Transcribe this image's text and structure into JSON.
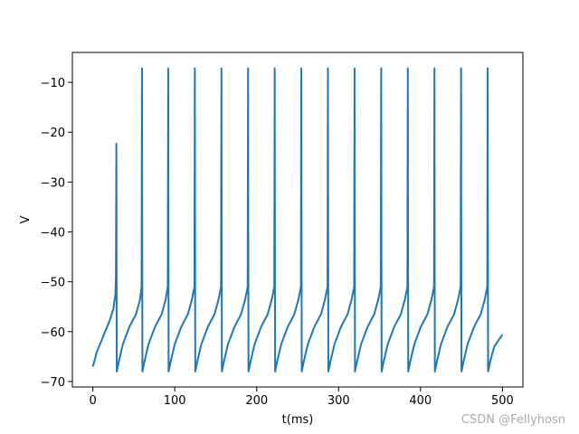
{
  "chart_data": {
    "type": "line",
    "xlabel": "t(ms)",
    "ylabel": "V",
    "watermark": "CSDN @Fellyhosn",
    "color": "#1f77b4",
    "x": [
      0,
      5,
      10,
      15,
      20,
      25,
      27.5,
      28.2,
      28.7,
      29.2,
      31.7,
      36.7,
      44.7,
      52.7,
      57.7,
      59.5,
      60,
      60.5,
      63,
      68,
      76,
      84,
      89,
      91.5,
      92,
      92.5,
      95,
      100,
      108,
      116,
      121,
      124,
      124.5,
      125,
      127.5,
      132.5,
      140.5,
      148.5,
      153.5,
      156.5,
      157,
      157.5,
      160,
      165,
      173,
      181,
      186,
      189,
      189.5,
      190,
      192.5,
      197.5,
      205.5,
      213.5,
      218.5,
      221.5,
      222,
      222.5,
      225,
      230,
      238,
      246,
      251,
      254,
      254.5,
      255,
      257.5,
      262.5,
      270.5,
      278.5,
      283.5,
      286.5,
      287,
      287.5,
      290,
      295,
      303,
      311,
      316,
      319,
      319.5,
      320,
      322.5,
      327.5,
      335.5,
      343.5,
      348.5,
      351.5,
      352,
      352.5,
      355,
      360,
      368,
      376,
      381,
      384,
      384.5,
      385,
      387.5,
      392.5,
      400.5,
      408.5,
      413.5,
      416.5,
      417,
      417.5,
      420,
      425,
      433,
      441,
      446,
      449,
      449.5,
      450,
      452.5,
      457.5,
      465.5,
      473.5,
      478.5,
      481.5,
      482,
      482.5,
      485,
      490,
      495,
      500
    ],
    "values": [
      -67,
      -64,
      -62,
      -60,
      -58,
      -55.5,
      -52.5,
      -49,
      -22.3,
      -68,
      -66,
      -62.5,
      -59,
      -56.5,
      -53.5,
      -51,
      -7.2,
      -68,
      -66,
      -62.5,
      -59,
      -56.5,
      -53.5,
      -51,
      -7.2,
      -68,
      -66,
      -62.5,
      -59,
      -56.5,
      -53.5,
      -51,
      -7.2,
      -68,
      -66,
      -62.5,
      -59,
      -56.5,
      -53.5,
      -51,
      -7.2,
      -68,
      -66,
      -62.5,
      -59,
      -56.5,
      -53.5,
      -51,
      -7.2,
      -68,
      -66,
      -62.5,
      -59,
      -56.5,
      -53.5,
      -51,
      -7.2,
      -68,
      -66,
      -62.5,
      -59,
      -56.5,
      -53.5,
      -51,
      -7.2,
      -68,
      -66,
      -62.5,
      -59,
      -56.5,
      -53.5,
      -51,
      -7.2,
      -68,
      -66,
      -62.5,
      -59,
      -56.5,
      -53.5,
      -51,
      -7.2,
      -68,
      -66,
      -62.5,
      -59,
      -56.5,
      -53.5,
      -51,
      -7.2,
      -68,
      -66,
      -62.5,
      -59,
      -56.5,
      -53.5,
      -51,
      -7.2,
      -68,
      -66,
      -62.5,
      -59,
      -56.5,
      -53.5,
      -51,
      -7.2,
      -68,
      -66,
      -62.5,
      -59,
      -56.5,
      -53.5,
      -51,
      -7.2,
      -68,
      -66,
      -62.5,
      -59,
      -56.5,
      -53.5,
      -51,
      -7.2,
      -68,
      -66,
      -63,
      -61.8,
      -60.6
    ],
    "xlim": [
      -25,
      525
    ],
    "ylim": [
      -71.1,
      -4.0
    ],
    "xticks": [
      0,
      100,
      200,
      300,
      400,
      500
    ],
    "yticks": [
      {
        "value": -70,
        "label": "−70"
      },
      {
        "value": -60,
        "label": "−60"
      },
      {
        "value": -50,
        "label": "−50"
      },
      {
        "value": -40,
        "label": "−40"
      },
      {
        "value": -30,
        "label": "−30"
      },
      {
        "value": -20,
        "label": "−20"
      },
      {
        "value": -10,
        "label": "−10"
      }
    ]
  }
}
